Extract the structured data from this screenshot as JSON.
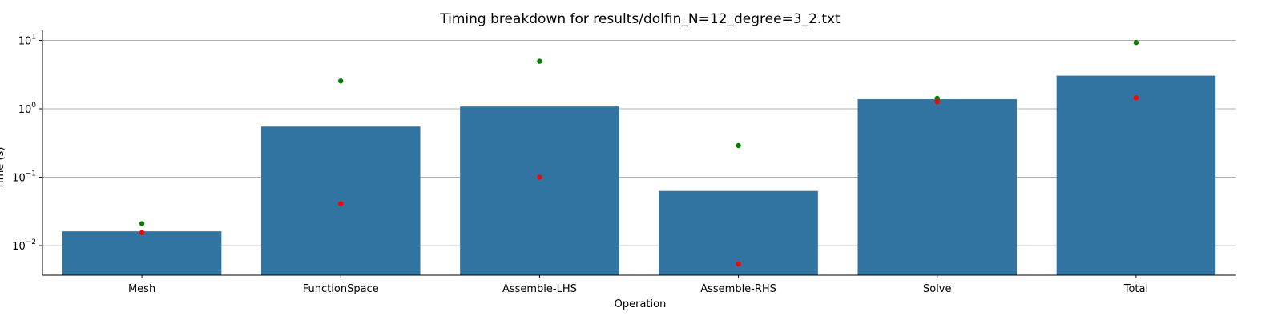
{
  "chart_data": {
    "type": "bar",
    "title": "Timing breakdown for results/dolfin_N=12_degree=3_2.txt",
    "xlabel": "Operation",
    "ylabel": "Time (s)",
    "yscale": "log",
    "ylim": [
      0.0037,
      14
    ],
    "grid": "horizontal",
    "categories": [
      "Mesh",
      "FunctionSpace",
      "Assemble-LHS",
      "Assemble-RHS",
      "Solve",
      "Total"
    ],
    "values": [
      0.0162,
      0.55,
      1.08,
      0.063,
      1.38,
      3.05
    ],
    "points": [
      {
        "color": "#008000",
        "values": [
          0.021,
          2.55,
          4.95,
          0.29,
          1.42,
          9.3
        ]
      },
      {
        "color": "#ff0000",
        "values": [
          0.0155,
          0.041,
          0.1,
          0.0054,
          1.27,
          1.45
        ]
      }
    ],
    "yticks": [
      {
        "base": "10",
        "exp": "−2",
        "value": 0.01
      },
      {
        "base": "10",
        "exp": "−1",
        "value": 0.1
      },
      {
        "base": "10",
        "exp": "0",
        "value": 1
      },
      {
        "base": "10",
        "exp": "1",
        "value": 10
      }
    ],
    "colors": {
      "bar": "#3274a1",
      "grid": "#b0b0b0",
      "axis": "#000000"
    }
  }
}
